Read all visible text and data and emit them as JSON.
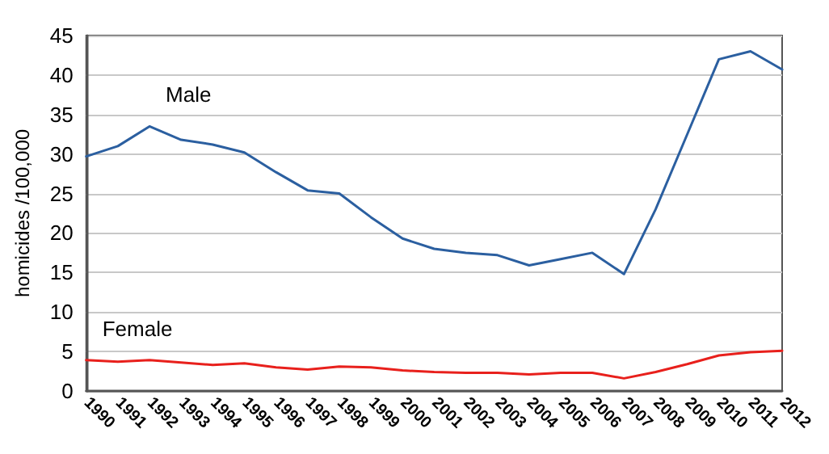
{
  "chart_data": {
    "type": "line",
    "ylabel": "homicides /100,000",
    "categories": [
      "1990",
      "1991",
      "1992",
      "1993",
      "1994",
      "1995",
      "1996",
      "1997",
      "1998",
      "1999",
      "2000",
      "2001",
      "2002",
      "2003",
      "2004",
      "2005",
      "2006",
      "2007",
      "2008",
      "2009",
      "2010",
      "2011",
      "2012"
    ],
    "series": [
      {
        "name": "Male",
        "color": "#2b5fa0",
        "values": [
          29.7,
          31,
          33.5,
          31.8,
          31.2,
          30.2,
          27.7,
          25.4,
          25,
          22,
          19.3,
          18,
          17.5,
          17.2,
          15.9,
          16.7,
          17.5,
          14.8,
          23,
          32.5,
          42,
          43,
          40.7
        ]
      },
      {
        "name": "Female",
        "color": "#e8201c",
        "values": [
          3.9,
          3.7,
          3.9,
          3.6,
          3.3,
          3.5,
          3,
          2.7,
          3.1,
          3,
          2.6,
          2.4,
          2.3,
          2.3,
          2.1,
          2.3,
          2.3,
          1.6,
          2.4,
          3.4,
          4.5,
          4.9,
          5.1
        ]
      }
    ],
    "ylim": [
      0,
      45
    ],
    "yticks": [
      0,
      5,
      10,
      15,
      20,
      25,
      30,
      35,
      40,
      45
    ],
    "grid": "y",
    "legend": false,
    "marker": "none",
    "line_style": "solid"
  }
}
